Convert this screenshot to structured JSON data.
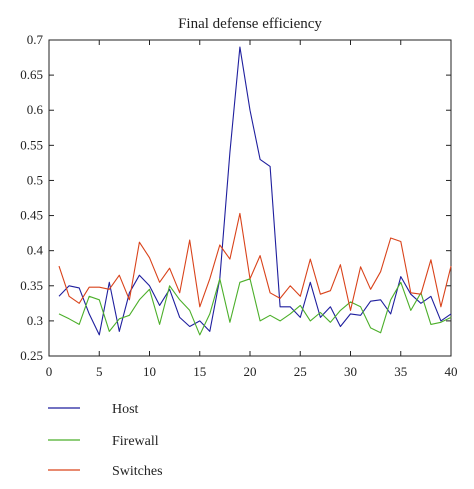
{
  "chart_data": {
    "type": "line",
    "title": "Final defense efficiency",
    "xlabel": "",
    "ylabel": "",
    "xlim": [
      0,
      40
    ],
    "ylim": [
      0.25,
      0.7
    ],
    "xticks": [
      0,
      5,
      10,
      15,
      20,
      25,
      30,
      35,
      40
    ],
    "yticks": [
      0.25,
      0.3,
      0.35,
      0.4,
      0.45,
      0.5,
      0.55,
      0.6,
      0.65,
      0.7
    ],
    "ytick_labels": [
      "0.25",
      "0.3",
      "0.35",
      "0.4",
      "0.45",
      "0.5",
      "0.55",
      "0.6",
      "0.65",
      "0.7"
    ],
    "grid": false,
    "legend_position": "below",
    "x": [
      1,
      2,
      3,
      4,
      5,
      6,
      7,
      8,
      9,
      10,
      11,
      12,
      13,
      14,
      15,
      16,
      17,
      18,
      19,
      20,
      21,
      22,
      23,
      24,
      25,
      26,
      27,
      28,
      29,
      30,
      31,
      32,
      33,
      34,
      35,
      36,
      37,
      38,
      39,
      40
    ],
    "series": [
      {
        "name": "Host",
        "color": "#1f1f9e",
        "values": [
          0.335,
          0.35,
          0.347,
          0.31,
          0.28,
          0.355,
          0.285,
          0.34,
          0.365,
          0.35,
          0.322,
          0.345,
          0.305,
          0.292,
          0.3,
          0.285,
          0.36,
          0.54,
          0.69,
          0.6,
          0.53,
          0.52,
          0.32,
          0.32,
          0.305,
          0.355,
          0.305,
          0.32,
          0.292,
          0.31,
          0.308,
          0.328,
          0.33,
          0.31,
          0.363,
          0.338,
          0.325,
          0.335,
          0.3,
          0.31
        ]
      },
      {
        "name": "Firewall",
        "color": "#4caf2a",
        "values": [
          0.31,
          0.303,
          0.295,
          0.335,
          0.33,
          0.285,
          0.303,
          0.308,
          0.33,
          0.345,
          0.295,
          0.35,
          0.33,
          0.315,
          0.28,
          0.31,
          0.36,
          0.298,
          0.355,
          0.36,
          0.3,
          0.308,
          0.3,
          0.31,
          0.322,
          0.3,
          0.312,
          0.298,
          0.315,
          0.327,
          0.32,
          0.29,
          0.283,
          0.33,
          0.355,
          0.315,
          0.34,
          0.295,
          0.298,
          0.305
        ]
      },
      {
        "name": "Switches",
        "color": "#d9431b",
        "values": [
          0.378,
          0.335,
          0.325,
          0.348,
          0.348,
          0.345,
          0.365,
          0.33,
          0.412,
          0.39,
          0.355,
          0.375,
          0.34,
          0.415,
          0.32,
          0.36,
          0.408,
          0.388,
          0.453,
          0.36,
          0.393,
          0.34,
          0.332,
          0.35,
          0.335,
          0.388,
          0.338,
          0.343,
          0.38,
          0.315,
          0.377,
          0.345,
          0.37,
          0.418,
          0.413,
          0.34,
          0.338,
          0.387,
          0.32,
          0.378
        ]
      }
    ]
  }
}
